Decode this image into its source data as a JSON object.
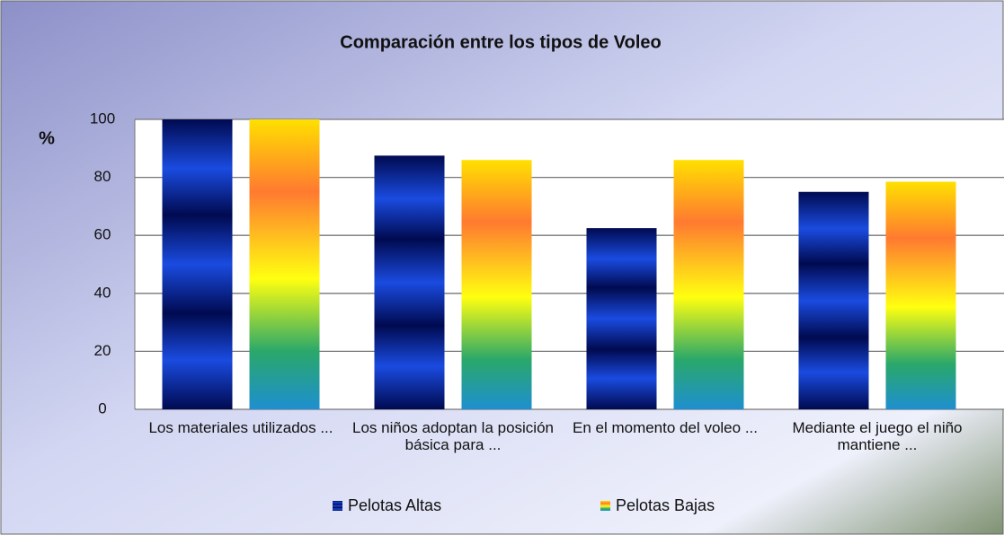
{
  "chart_data": {
    "type": "bar",
    "title": "Comparación entre los tipos de Voleo",
    "y_label": "%",
    "categories": [
      "Los materiales utilizados ...",
      "Los niños adoptan la posición básica para ...",
      "En el momento del voleo ...",
      "Mediante el juego el niño mantiene ..."
    ],
    "series": [
      {
        "name": "Pelotas Altas",
        "color": "#1a4be0",
        "values": [
          100,
          87.5,
          62.5,
          75
        ]
      },
      {
        "name": "Pelotas Bajas",
        "color": "#ff7a30",
        "values": [
          100,
          86,
          86,
          78.5
        ]
      }
    ],
    "ylim": [
      0,
      100
    ],
    "yticks": [
      0,
      20,
      40,
      60,
      80,
      100
    ],
    "grid": true,
    "legend": "bottom"
  }
}
